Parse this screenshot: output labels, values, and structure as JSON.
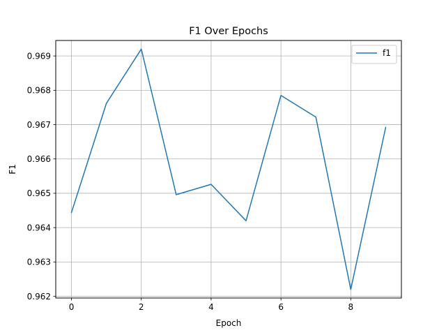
{
  "chart_data": {
    "type": "line",
    "title": "F1 Over Epochs",
    "xlabel": "Epoch",
    "ylabel": "F1",
    "xlim": [
      -0.45,
      9.45
    ],
    "ylim": [
      0.96195,
      0.96945
    ],
    "xticks": [
      0,
      2,
      4,
      6,
      8
    ],
    "xtick_labels": [
      "0",
      "2",
      "4",
      "6",
      "8"
    ],
    "yticks": [
      0.962,
      0.963,
      0.964,
      0.965,
      0.966,
      0.967,
      0.968,
      0.969
    ],
    "ytick_labels": [
      "0.962",
      "0.963",
      "0.964",
      "0.965",
      "0.966",
      "0.967",
      "0.968",
      "0.969"
    ],
    "grid": true,
    "legend": "top-right",
    "x": [
      0,
      1,
      2,
      3,
      4,
      5,
      6,
      7,
      8,
      9
    ],
    "series": [
      {
        "name": "f1",
        "color": "#1f77b4",
        "values": [
          0.96444,
          0.96762,
          0.9692,
          0.96496,
          0.96526,
          0.9642,
          0.96785,
          0.96722,
          0.9622,
          0.96692
        ]
      }
    ]
  }
}
